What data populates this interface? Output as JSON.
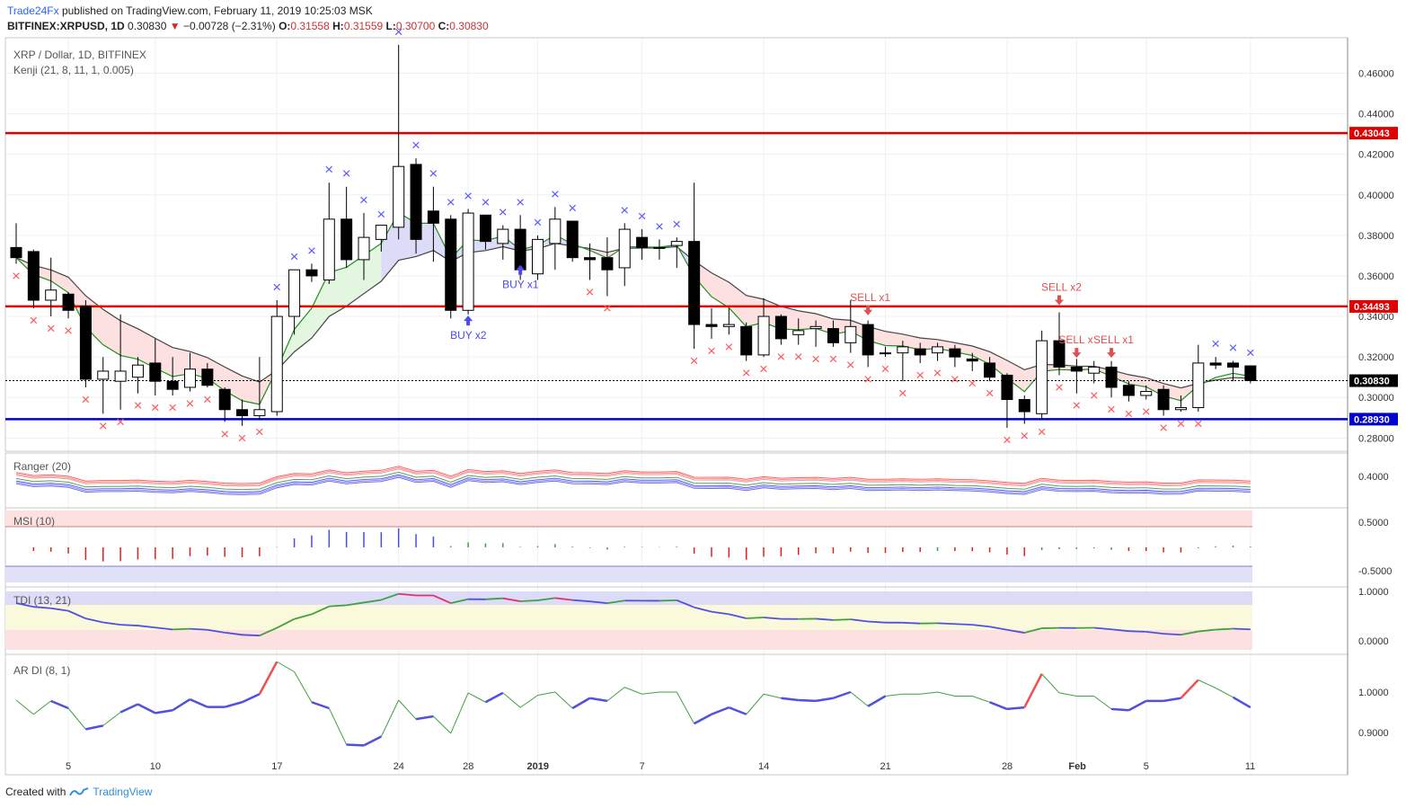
{
  "header": {
    "publisher": "Trade24Fx",
    "published_text": "published on TradingView.com, February 11, 2019 10:25:03 MSK",
    "symbol": "BITFINEX:XRPUSD, 1D",
    "last": "0.30830",
    "change": "−0.00728 (−2.31%)",
    "o_label": "O:",
    "o": "0.31558",
    "h_label": "H:",
    "h": "0.31559",
    "l_label": "L:",
    "l": "0.30700",
    "c_label": "C:",
    "c": "0.30830"
  },
  "main_legend": {
    "title": "XRP / Dollar, 1D, BITFINEX",
    "indicator": "Kenji (21, 8, 11, 1, 0.005)"
  },
  "panels": {
    "ranger": "Ranger (20)",
    "msi": "MSI (10)",
    "tdi": "TDI (13, 21)",
    "ardi": "AR DI (8, 1)"
  },
  "footer": {
    "created": "Created with",
    "brand": "TradingView"
  },
  "colors": {
    "up_candle": "#ffffff",
    "down_candle": "#000000",
    "resistance": "#e00000",
    "support": "#0000d0",
    "buy_marker": "#5a5aff",
    "sell_marker": "#ff5a5a",
    "cloud_red": "#fde0e0",
    "cloud_green": "#e2f6e0",
    "cloud_blue": "#dcdcf8"
  },
  "chart_data": [
    {
      "type": "candlestick",
      "title": "XRP / Dollar, 1D, BITFINEX",
      "x_ticks": [
        "5",
        "10",
        "17",
        "24",
        "28",
        "2019",
        "7",
        "14",
        "21",
        "28",
        "Feb",
        "5",
        "11"
      ],
      "y_ticks": [
        "0.28000",
        "0.30000",
        "0.32000",
        "0.34000",
        "0.36000",
        "0.38000",
        "0.40000",
        "0.42000",
        "0.44000",
        "0.46000"
      ],
      "ylim": [
        0.2735,
        0.4775
      ],
      "last_price": "0.30830",
      "levels": [
        {
          "value": 0.43043,
          "label": "0.43043",
          "color": "#e00000"
        },
        {
          "value": 0.34493,
          "label": "0.34493",
          "color": "#e00000"
        },
        {
          "value": 0.2893,
          "label": "0.28930",
          "color": "#0000d0"
        }
      ],
      "candles": [
        [
          0.374,
          0.386,
          0.366,
          0.369
        ],
        [
          0.372,
          0.373,
          0.344,
          0.348
        ],
        [
          0.348,
          0.369,
          0.34,
          0.353
        ],
        [
          0.351,
          0.352,
          0.339,
          0.343
        ],
        [
          0.345,
          0.348,
          0.305,
          0.309
        ],
        [
          0.309,
          0.32,
          0.292,
          0.313
        ],
        [
          0.308,
          0.341,
          0.294,
          0.313
        ],
        [
          0.31,
          0.32,
          0.302,
          0.316
        ],
        [
          0.317,
          0.329,
          0.301,
          0.308
        ],
        [
          0.308,
          0.32,
          0.301,
          0.304
        ],
        [
          0.305,
          0.322,
          0.303,
          0.314
        ],
        [
          0.314,
          0.317,
          0.305,
          0.306
        ],
        [
          0.304,
          0.305,
          0.288,
          0.294
        ],
        [
          0.294,
          0.299,
          0.286,
          0.291
        ],
        [
          0.291,
          0.32,
          0.289,
          0.294
        ],
        [
          0.293,
          0.348,
          0.291,
          0.34
        ],
        [
          0.34,
          0.363,
          0.331,
          0.363
        ],
        [
          0.363,
          0.366,
          0.357,
          0.36
        ],
        [
          0.358,
          0.406,
          0.356,
          0.388
        ],
        [
          0.388,
          0.404,
          0.364,
          0.368
        ],
        [
          0.368,
          0.391,
          0.358,
          0.379
        ],
        [
          0.378,
          0.384,
          0.372,
          0.385
        ],
        [
          0.384,
          0.474,
          0.378,
          0.414
        ],
        [
          0.415,
          0.418,
          0.371,
          0.378
        ],
        [
          0.392,
          0.404,
          0.367,
          0.386
        ],
        [
          0.388,
          0.39,
          0.339,
          0.343
        ],
        [
          0.343,
          0.393,
          0.341,
          0.391
        ],
        [
          0.39,
          0.39,
          0.373,
          0.377
        ],
        [
          0.376,
          0.385,
          0.368,
          0.383
        ],
        [
          0.383,
          0.39,
          0.358,
          0.363
        ],
        [
          0.361,
          0.38,
          0.358,
          0.378
        ],
        [
          0.376,
          0.394,
          0.363,
          0.388
        ],
        [
          0.387,
          0.387,
          0.367,
          0.369
        ],
        [
          0.369,
          0.376,
          0.358,
          0.368
        ],
        [
          0.369,
          0.379,
          0.35,
          0.363
        ],
        [
          0.364,
          0.386,
          0.355,
          0.383
        ],
        [
          0.379,
          0.383,
          0.368,
          0.374
        ],
        [
          0.374,
          0.378,
          0.368,
          0.374
        ],
        [
          0.375,
          0.379,
          0.364,
          0.377
        ],
        [
          0.377,
          0.406,
          0.324,
          0.336
        ],
        [
          0.336,
          0.344,
          0.329,
          0.335
        ],
        [
          0.335,
          0.344,
          0.331,
          0.336
        ],
        [
          0.335,
          0.337,
          0.318,
          0.321
        ],
        [
          0.321,
          0.349,
          0.32,
          0.34
        ],
        [
          0.34,
          0.341,
          0.326,
          0.329
        ],
        [
          0.331,
          0.339,
          0.326,
          0.333
        ],
        [
          0.334,
          0.338,
          0.325,
          0.335
        ],
        [
          0.334,
          0.338,
          0.325,
          0.327
        ],
        [
          0.327,
          0.348,
          0.322,
          0.335
        ],
        [
          0.336,
          0.338,
          0.315,
          0.321
        ],
        [
          0.322,
          0.325,
          0.32,
          0.322
        ],
        [
          0.322,
          0.328,
          0.308,
          0.325
        ],
        [
          0.324,
          0.327,
          0.317,
          0.321
        ],
        [
          0.322,
          0.327,
          0.318,
          0.325
        ],
        [
          0.324,
          0.326,
          0.315,
          0.32
        ],
        [
          0.319,
          0.322,
          0.313,
          0.318
        ],
        [
          0.317,
          0.32,
          0.308,
          0.31
        ],
        [
          0.311,
          0.312,
          0.285,
          0.299
        ],
        [
          0.299,
          0.301,
          0.287,
          0.293
        ],
        [
          0.292,
          0.333,
          0.289,
          0.328
        ],
        [
          0.328,
          0.342,
          0.311,
          0.315
        ],
        [
          0.315,
          0.319,
          0.302,
          0.313
        ],
        [
          0.312,
          0.318,
          0.307,
          0.315
        ],
        [
          0.315,
          0.318,
          0.3,
          0.305
        ],
        [
          0.306,
          0.308,
          0.298,
          0.301
        ],
        [
          0.301,
          0.306,
          0.299,
          0.303
        ],
        [
          0.304,
          0.306,
          0.291,
          0.294
        ],
        [
          0.294,
          0.301,
          0.293,
          0.295
        ],
        [
          0.295,
          0.326,
          0.293,
          0.317
        ],
        [
          0.317,
          0.32,
          0.314,
          0.316
        ],
        [
          0.317,
          0.318,
          0.308,
          0.315
        ],
        [
          0.3156,
          0.3156,
          0.307,
          0.3083
        ]
      ],
      "annotations": [
        {
          "text": "BUY x1",
          "index": 29,
          "price": 0.361
        },
        {
          "text": "BUY x2",
          "index": 26,
          "price": 0.336
        },
        {
          "text": "SELL x1",
          "index": 49,
          "price": 0.345
        },
        {
          "text": "SELL x2",
          "index": 60,
          "price": 0.35
        },
        {
          "text": "SELL x",
          "index": 61,
          "price": 0.324
        },
        {
          "text": "SELL x1",
          "index": 63,
          "price": 0.324
        }
      ]
    },
    {
      "type": "line",
      "title": "Ranger (20)",
      "y_ticks": [
        "0.4000"
      ]
    },
    {
      "type": "bar",
      "title": "MSI (10)",
      "y_ticks": [
        "0.5000",
        "-0.5000"
      ]
    },
    {
      "type": "line",
      "title": "TDI (13, 21)",
      "y_ticks": [
        "1.0000",
        "0.0000"
      ]
    },
    {
      "type": "line",
      "title": "AR DI (8, 1)",
      "y_ticks": [
        "1.0000",
        "0.9000"
      ],
      "values": [
        0.98,
        0.945,
        0.978,
        0.96,
        0.908,
        0.917,
        0.95,
        0.97,
        0.948,
        0.955,
        0.982,
        0.963,
        0.963,
        0.975,
        0.995,
        1.075,
        1.05,
        0.975,
        0.96,
        0.87,
        0.868,
        0.89,
        0.98,
        0.933,
        0.94,
        0.898,
        0.998,
        0.975,
        0.998,
        0.962,
        0.992,
        1.0,
        0.96,
        0.985,
        0.978,
        1.012,
        0.995,
        1.0,
        1.0,
        0.922,
        0.945,
        0.962,
        0.945,
        0.995,
        0.985,
        0.98,
        0.978,
        0.985,
        1.0,
        0.965,
        0.99,
        0.995,
        0.995,
        1.0,
        0.99,
        0.99,
        0.975,
        0.958,
        0.962,
        1.045,
        0.998,
        0.99,
        0.99,
        0.958,
        0.955,
        0.978,
        0.978,
        0.985,
        1.03,
        1.01,
        0.987,
        0.962
      ]
    }
  ]
}
